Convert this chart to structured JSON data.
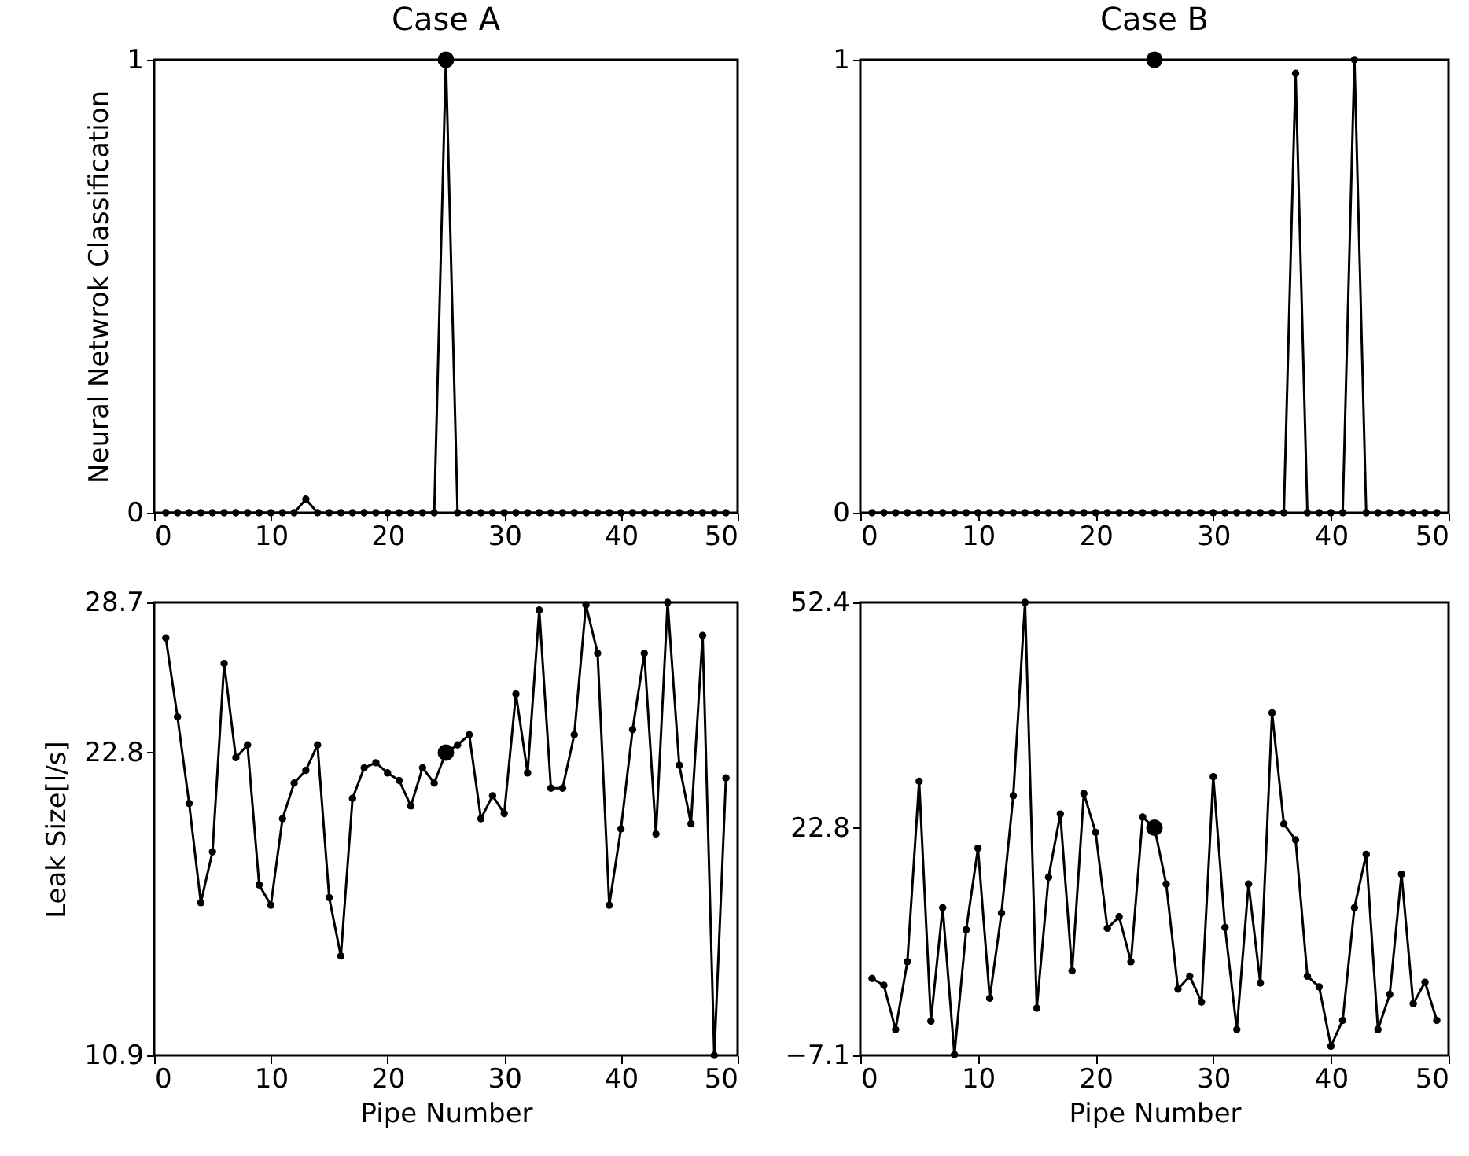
{
  "chart_data": [
    {
      "type": "line",
      "title": "Case A",
      "ylabel": "Neural Netwrok Classification",
      "marker": "circle",
      "x": [
        1,
        2,
        3,
        4,
        5,
        6,
        7,
        8,
        9,
        10,
        11,
        12,
        13,
        14,
        15,
        16,
        17,
        18,
        19,
        20,
        21,
        22,
        23,
        24,
        25,
        26,
        27,
        28,
        29,
        30,
        31,
        32,
        33,
        34,
        35,
        36,
        37,
        38,
        39,
        40,
        41,
        42,
        43,
        44,
        45,
        46,
        47,
        48,
        49
      ],
      "series": [
        {
          "color": "#000000",
          "values": [
            0,
            0,
            0,
            0,
            0,
            0,
            0,
            0,
            0,
            0,
            0,
            0,
            0.03,
            0,
            0,
            0,
            0,
            0,
            0,
            0,
            0,
            0,
            0,
            0,
            1,
            0,
            0,
            0,
            0,
            0,
            0,
            0,
            0,
            0,
            0,
            0,
            0,
            0,
            0,
            0,
            0,
            0,
            0,
            0,
            0,
            0,
            0,
            0,
            0
          ]
        },
        {
          "type": "scatter",
          "color": "#000000",
          "values": [
            null,
            null,
            null,
            null,
            null,
            null,
            null,
            null,
            null,
            null,
            null,
            null,
            null,
            null,
            null,
            null,
            null,
            null,
            null,
            null,
            null,
            null,
            null,
            null,
            1,
            null,
            null,
            null,
            null,
            null,
            null,
            null,
            null,
            null,
            null,
            null,
            null,
            null,
            null,
            null,
            null,
            null,
            null,
            null,
            null,
            null,
            null,
            null,
            null
          ]
        }
      ],
      "xlim": [
        0,
        50
      ],
      "xticks": [
        0,
        10,
        20,
        30,
        40,
        50
      ],
      "ylim": [
        0,
        1
      ],
      "yticks": [
        0,
        1
      ]
    },
    {
      "type": "line",
      "title": "Case B",
      "marker": "circle",
      "x": [
        1,
        2,
        3,
        4,
        5,
        6,
        7,
        8,
        9,
        10,
        11,
        12,
        13,
        14,
        15,
        16,
        17,
        18,
        19,
        20,
        21,
        22,
        23,
        24,
        25,
        26,
        27,
        28,
        29,
        30,
        31,
        32,
        33,
        34,
        35,
        36,
        37,
        38,
        39,
        40,
        41,
        42,
        43,
        44,
        45,
        46,
        47,
        48,
        49
      ],
      "series": [
        {
          "color": "#000000",
          "values": [
            0,
            0,
            0,
            0,
            0,
            0,
            0,
            0,
            0,
            0,
            0,
            0,
            0,
            0,
            0,
            0,
            0,
            0,
            0,
            0,
            0,
            0,
            0,
            0,
            0,
            0,
            0,
            0,
            0,
            0,
            0,
            0,
            0,
            0,
            0,
            0,
            0.97,
            0,
            0,
            0,
            0,
            1,
            0,
            0,
            0,
            0,
            0,
            0,
            0
          ]
        },
        {
          "type": "scatter",
          "color": "#000000",
          "values": [
            null,
            null,
            null,
            null,
            null,
            null,
            null,
            null,
            null,
            null,
            null,
            null,
            null,
            null,
            null,
            null,
            null,
            null,
            null,
            null,
            null,
            null,
            null,
            null,
            1,
            null,
            null,
            null,
            null,
            null,
            null,
            null,
            null,
            null,
            null,
            null,
            null,
            null,
            null,
            null,
            null,
            null,
            null,
            null,
            null,
            null,
            null,
            null,
            null
          ]
        }
      ],
      "xlim": [
        0,
        50
      ],
      "xticks": [
        0,
        10,
        20,
        30,
        40,
        50
      ],
      "ylim": [
        0,
        1
      ],
      "yticks": [
        0,
        1
      ]
    },
    {
      "type": "line",
      "xlabel": "Pipe Number",
      "ylabel": "Leak Size[l/s]",
      "marker": "circle",
      "x": [
        1,
        2,
        3,
        4,
        5,
        6,
        7,
        8,
        9,
        10,
        11,
        12,
        13,
        14,
        15,
        16,
        17,
        18,
        19,
        20,
        21,
        22,
        23,
        24,
        25,
        26,
        27,
        28,
        29,
        30,
        31,
        32,
        33,
        34,
        35,
        36,
        37,
        38,
        39,
        40,
        41,
        42,
        43,
        44,
        45,
        46,
        47,
        48,
        49
      ],
      "series": [
        {
          "color": "#000000",
          "values": [
            27.3,
            24.2,
            20.8,
            16.9,
            18.9,
            26.3,
            22.6,
            23.1,
            17.6,
            16.8,
            20.2,
            21.6,
            22.1,
            23.1,
            17.1,
            14.8,
            21.0,
            22.2,
            22.4,
            22.0,
            21.7,
            20.7,
            22.2,
            21.6,
            22.8,
            23.1,
            23.5,
            20.2,
            21.1,
            20.4,
            25.1,
            22.0,
            28.4,
            21.4,
            21.4,
            23.5,
            28.6,
            26.7,
            16.8,
            19.8,
            23.7,
            26.7,
            19.6,
            28.7,
            22.3,
            20.0,
            27.4,
            10.9,
            21.8
          ]
        },
        {
          "type": "scatter",
          "color": "#000000",
          "values": [
            null,
            null,
            null,
            null,
            null,
            null,
            null,
            null,
            null,
            null,
            null,
            null,
            null,
            null,
            null,
            null,
            null,
            null,
            null,
            null,
            null,
            null,
            null,
            null,
            22.8,
            null,
            null,
            null,
            null,
            null,
            null,
            null,
            null,
            null,
            null,
            null,
            null,
            null,
            null,
            null,
            null,
            null,
            null,
            null,
            null,
            null,
            null,
            null,
            null
          ]
        }
      ],
      "xlim": [
        0,
        50
      ],
      "xticks": [
        0,
        10,
        20,
        30,
        40,
        50
      ],
      "ylim": [
        10.9,
        28.7
      ],
      "yticks": [
        10.9,
        22.8,
        28.7
      ]
    },
    {
      "type": "line",
      "xlabel": "Pipe Number",
      "marker": "circle",
      "x": [
        1,
        2,
        3,
        4,
        5,
        6,
        7,
        8,
        9,
        10,
        11,
        12,
        13,
        14,
        15,
        16,
        17,
        18,
        19,
        20,
        21,
        22,
        23,
        24,
        25,
        26,
        27,
        28,
        29,
        30,
        31,
        32,
        33,
        34,
        35,
        36,
        37,
        38,
        39,
        40,
        41,
        42,
        43,
        44,
        45,
        46,
        47,
        48,
        49
      ],
      "series": [
        {
          "color": "#000000",
          "values": [
            3.0,
            2.1,
            -3.7,
            5.2,
            28.9,
            -2.6,
            12.3,
            -7.0,
            9.4,
            20.1,
            0.4,
            11.6,
            27.0,
            52.4,
            -0.9,
            16.3,
            24.6,
            4.0,
            27.3,
            22.2,
            9.6,
            11.1,
            5.2,
            24.2,
            22.8,
            15.4,
            1.6,
            3.3,
            -0.1,
            29.5,
            9.7,
            -3.7,
            15.4,
            2.4,
            37.9,
            23.3,
            21.2,
            3.3,
            1.9,
            -5.9,
            -2.5,
            12.3,
            19.3,
            -3.7,
            0.9,
            16.7,
            -0.3,
            2.5,
            -2.5
          ]
        },
        {
          "type": "scatter",
          "color": "#000000",
          "values": [
            null,
            null,
            null,
            null,
            null,
            null,
            null,
            null,
            null,
            null,
            null,
            null,
            null,
            null,
            null,
            null,
            null,
            null,
            null,
            null,
            null,
            null,
            null,
            null,
            22.8,
            null,
            null,
            null,
            null,
            null,
            null,
            null,
            null,
            null,
            null,
            null,
            null,
            null,
            null,
            null,
            null,
            null,
            null,
            null,
            null,
            null,
            null,
            null,
            null
          ]
        }
      ],
      "xlim": [
        0,
        50
      ],
      "xticks": [
        0,
        10,
        20,
        30,
        40,
        50
      ],
      "ylim": [
        -7.1,
        52.4
      ],
      "yticks": [
        {
          "value": -7.1,
          "label": "−7.1"
        },
        22.8,
        52.4
      ]
    }
  ]
}
